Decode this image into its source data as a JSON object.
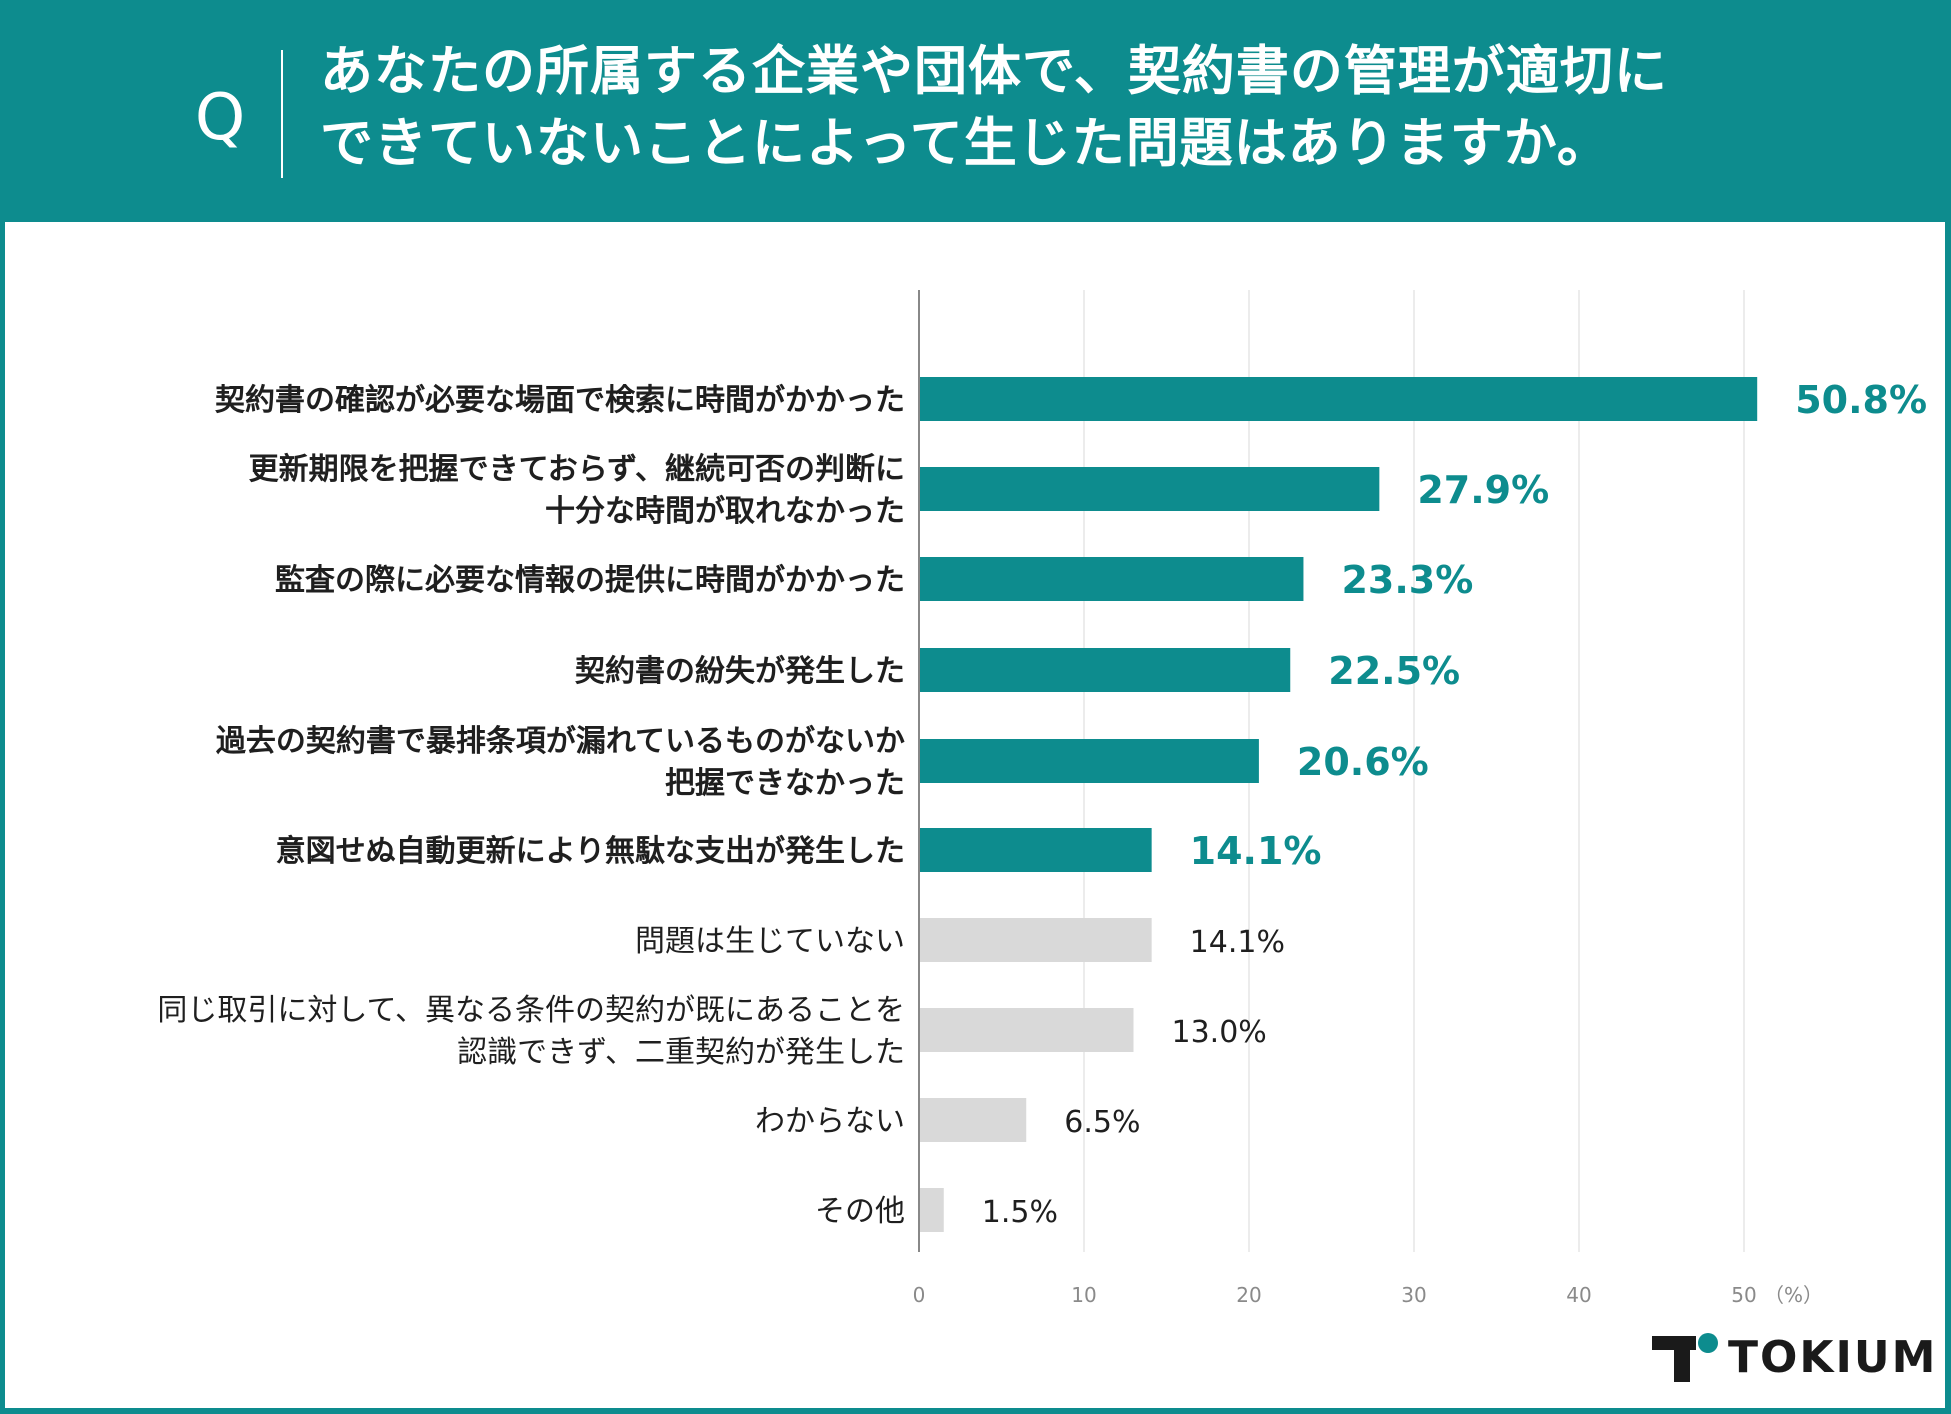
{
  "header": {
    "q_mark": "Q",
    "title_lines": [
      "あなたの所属する企業や団体で、契約書の管理が適切に",
      "できていないことによって生じた問題はありますか。"
    ]
  },
  "colors": {
    "accent": "#0d8c8e",
    "bar_highlight": "#0d8c8e",
    "bar_muted": "#d9d9d9",
    "label_dark": "#1f1f1f",
    "grid": "#e6e6e6",
    "axis": "#888888"
  },
  "chart_data": {
    "type": "bar",
    "orientation": "horizontal",
    "categories": [
      [
        "契約書の確認が必要な場面で検索に時間がかかった"
      ],
      [
        "更新期限を把握できておらず、継続可否の判断に",
        "十分な時間が取れなかった"
      ],
      [
        "監査の際に必要な情報の提供に時間がかかった"
      ],
      [
        "契約書の紛失が発生した"
      ],
      [
        "過去の契約書で暴排条項が漏れているものがないか",
        "把握できなかった"
      ],
      [
        "意図せぬ自動更新により無駄な支出が発生した"
      ],
      [
        "問題は生じていない"
      ],
      [
        "同じ取引に対して、異なる条件の契約が既にあることを",
        "認識できず、二重契約が発生した"
      ],
      [
        "わからない"
      ],
      [
        "その他"
      ]
    ],
    "values": [
      50.8,
      27.9,
      23.3,
      22.5,
      20.6,
      14.1,
      14.1,
      13.0,
      6.5,
      1.5
    ],
    "value_labels": [
      "50.8%",
      "27.9%",
      "23.3%",
      "22.5%",
      "20.6%",
      "14.1%",
      "14.1%",
      "13.0%",
      "6.5%",
      "1.5%"
    ],
    "highlighted": [
      true,
      true,
      true,
      true,
      true,
      true,
      false,
      false,
      false,
      false
    ],
    "xlim": [
      0,
      50
    ],
    "x_ticks": [
      "0",
      "10",
      "20",
      "30",
      "40",
      "50"
    ],
    "x_unit": "（%）",
    "grid": true
  },
  "logo": {
    "text": "TOKIUM"
  }
}
